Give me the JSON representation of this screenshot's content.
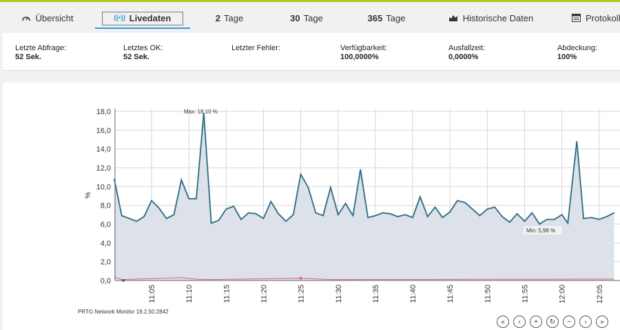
{
  "tabs": [
    {
      "id": "overview",
      "label": "Übersicht",
      "icon": "gauge-icon"
    },
    {
      "id": "live",
      "label": "Livedaten",
      "icon": "broadcast-icon",
      "active": true
    },
    {
      "id": "2d",
      "num": "2",
      "label": "Tage"
    },
    {
      "id": "30d",
      "num": "30",
      "label": "Tage"
    },
    {
      "id": "365d",
      "num": "365",
      "label": "Tage"
    },
    {
      "id": "hist",
      "label": "Historische Daten",
      "icon": "area-chart-icon"
    },
    {
      "id": "log",
      "label": "Protokoll",
      "icon": "log-icon"
    }
  ],
  "stats": [
    {
      "label": "Letzte Abfrage:",
      "value": "52 Sek."
    },
    {
      "label": "Letztes OK:",
      "value": "52 Sek."
    },
    {
      "label": "Letzter Fehler:",
      "value": ""
    },
    {
      "label": "Verfügbarkeit:",
      "value": "100,0000%"
    },
    {
      "label": "Ausfallzeit:",
      "value": "0,0000%"
    },
    {
      "label": "Abdeckung:",
      "value": "100%"
    }
  ],
  "chart_data": {
    "type": "area",
    "ylabel": "%",
    "ylim": [
      0,
      18
    ],
    "yticks": [
      "0,0",
      "2,0",
      "4,0",
      "6,0",
      "8,0",
      "10,0",
      "12,0",
      "14,0",
      "16,0",
      "18,0"
    ],
    "xticks": [
      "11:05",
      "11:10",
      "11:15",
      "11:20",
      "11:25",
      "11:30",
      "11:35",
      "11:40",
      "11:45",
      "11:50",
      "11:55",
      "12:00",
      "12:05"
    ],
    "x_minutes_range": [
      11.0,
      72.0
    ],
    "series": [
      {
        "color": "#1f5c74",
        "fill": "#dde2ea",
        "values": [
          [
            11.0,
            10.8
          ],
          [
            12.0,
            6.9
          ],
          [
            13.0,
            6.6
          ],
          [
            14.0,
            6.3
          ],
          [
            15.0,
            6.8
          ],
          [
            16.0,
            8.5
          ],
          [
            17.0,
            7.7
          ],
          [
            18.0,
            6.6
          ],
          [
            19.0,
            7.0
          ],
          [
            20.0,
            10.7
          ],
          [
            21.0,
            8.7
          ],
          [
            22.0,
            8.7
          ],
          [
            23.0,
            17.8
          ],
          [
            24.0,
            6.1
          ],
          [
            25.0,
            6.4
          ],
          [
            26.0,
            7.6
          ],
          [
            27.0,
            7.9
          ],
          [
            28.0,
            6.5
          ],
          [
            29.0,
            7.2
          ],
          [
            30.0,
            7.1
          ],
          [
            31.0,
            6.6
          ],
          [
            32.0,
            8.4
          ],
          [
            33.0,
            7.1
          ],
          [
            34.0,
            6.3
          ],
          [
            35.0,
            7.0
          ],
          [
            36.0,
            11.3
          ],
          [
            37.0,
            9.9
          ],
          [
            38.0,
            7.2
          ],
          [
            39.0,
            6.9
          ],
          [
            40.0,
            9.9
          ],
          [
            41.0,
            7.0
          ],
          [
            42.0,
            8.2
          ],
          [
            43.0,
            6.9
          ],
          [
            44.0,
            11.8
          ],
          [
            45.0,
            6.7
          ],
          [
            46.0,
            6.9
          ],
          [
            47.0,
            7.2
          ],
          [
            48.0,
            7.1
          ],
          [
            49.0,
            6.8
          ],
          [
            50.0,
            7.0
          ],
          [
            51.0,
            6.7
          ],
          [
            52.0,
            8.9
          ],
          [
            53.0,
            6.8
          ],
          [
            54.0,
            7.8
          ],
          [
            55.0,
            6.7
          ],
          [
            56.0,
            7.3
          ],
          [
            57.0,
            8.5
          ],
          [
            58.0,
            8.3
          ],
          [
            59.0,
            7.6
          ],
          [
            60.0,
            6.9
          ],
          [
            61.0,
            7.6
          ],
          [
            62.0,
            7.8
          ],
          [
            63.0,
            6.8
          ],
          [
            64.0,
            6.2
          ],
          [
            65.0,
            7.1
          ],
          [
            66.0,
            6.3
          ],
          [
            67.0,
            7.2
          ],
          [
            68.0,
            6.0
          ],
          [
            69.0,
            6.5
          ],
          [
            70.0,
            6.5
          ],
          [
            71.0,
            7.0
          ],
          [
            71.8,
            6.1
          ],
          [
            73.0,
            14.8
          ],
          [
            73.9,
            6.6
          ],
          [
            75.0,
            6.7
          ],
          [
            76.0,
            6.5
          ],
          [
            77.0,
            6.8
          ],
          [
            78.0,
            7.2
          ]
        ]
      },
      {
        "color": "#e05a96",
        "values": [
          [
            11.0,
            0.35
          ],
          [
            12.0,
            0.1
          ],
          [
            20.0,
            0.3
          ],
          [
            22.0,
            0.15
          ],
          [
            24.0,
            0.1
          ],
          [
            36.0,
            0.25
          ],
          [
            40.0,
            0.1
          ],
          [
            78.0,
            0.15
          ]
        ]
      }
    ],
    "annotations": [
      {
        "text": "Max: 18,10 %"
      },
      {
        "text": "Min: 5,98 %"
      }
    ]
  },
  "footer": "PRTG Network Monitor 19.2.50.2842",
  "nav_buttons": [
    {
      "name": "first-page-button",
      "glyph": "«"
    },
    {
      "name": "prev-button",
      "glyph": "‹"
    },
    {
      "name": "zoom-in-button",
      "glyph": "+"
    },
    {
      "name": "reset-button",
      "glyph": "↻"
    },
    {
      "name": "zoom-out-button",
      "glyph": "−"
    },
    {
      "name": "next-button",
      "glyph": "›"
    },
    {
      "name": "last-page-button",
      "glyph": "»"
    }
  ]
}
